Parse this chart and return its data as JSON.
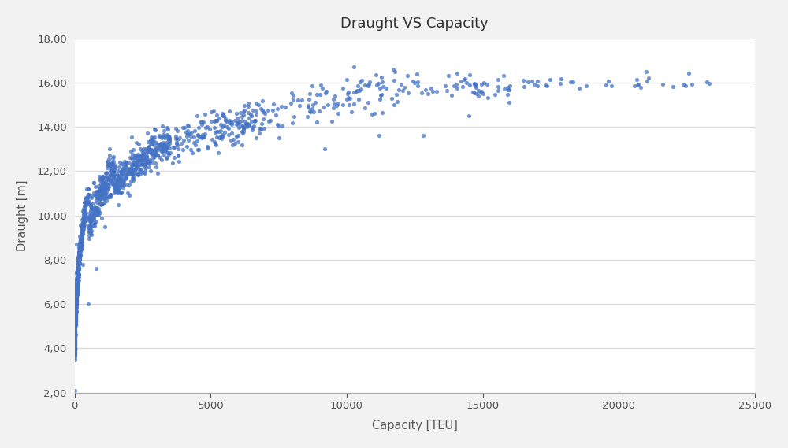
{
  "title": "Draught VS Capacity",
  "xlabel": "Capacity [TEU]",
  "ylabel": "Draught [m]",
  "xlim": [
    0,
    25000
  ],
  "ylim": [
    2.0,
    18.0
  ],
  "xticks": [
    0,
    5000,
    10000,
    15000,
    20000,
    25000
  ],
  "yticks": [
    2.0,
    4.0,
    6.0,
    8.0,
    10.0,
    12.0,
    14.0,
    16.0,
    18.0
  ],
  "dot_color": "#4472C4",
  "dot_size": 14,
  "dot_alpha": 0.75,
  "background_color": "#f2f2f2",
  "plot_bg_color": "#ffffff",
  "grid_color": "#d9d9d9",
  "title_fontsize": 13,
  "label_fontsize": 10.5
}
